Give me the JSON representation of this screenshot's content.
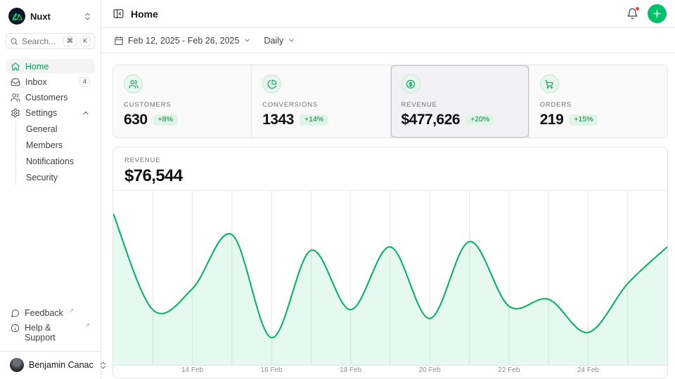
{
  "colors": {
    "accent": "#00c16a",
    "accent_text": "#00a155",
    "line": "#00b061",
    "area_fill": "rgba(0,193,106,0.10)",
    "gridline": "#e6e7ea",
    "notification_dot": "#ef4444"
  },
  "sidebar": {
    "workspace": {
      "name": "Nuxt"
    },
    "search": {
      "placeholder": "Search...",
      "kbd": [
        "⌘",
        "K"
      ]
    },
    "nav": [
      {
        "label": "Home",
        "icon": "home-icon",
        "active": true
      },
      {
        "label": "Inbox",
        "icon": "inbox-icon",
        "badge": "4"
      },
      {
        "label": "Customers",
        "icon": "users-icon"
      },
      {
        "label": "Settings",
        "icon": "gear-icon",
        "expanded": true,
        "children": [
          "General",
          "Members",
          "Notifications",
          "Security"
        ]
      }
    ],
    "footer": [
      {
        "label": "Feedback",
        "icon": "chat-bubble-icon",
        "external": "↗"
      },
      {
        "label": "Help & Support",
        "icon": "info-icon",
        "external": "↗"
      }
    ],
    "user": {
      "name": "Benjamin Canac"
    }
  },
  "header": {
    "title": "Home"
  },
  "toolbar": {
    "date_range": "Feb 12, 2025 - Feb 26, 2025",
    "granularity": "Daily"
  },
  "stats": [
    {
      "label": "CUSTOMERS",
      "value": "630",
      "delta": "+8%",
      "icon": "users-icon",
      "selected": false
    },
    {
      "label": "CONVERSIONS",
      "value": "1343",
      "delta": "+14%",
      "icon": "pie-chart-icon",
      "selected": false
    },
    {
      "label": "REVENUE",
      "value": "$477,626",
      "delta": "+20%",
      "icon": "dollar-circle-icon",
      "selected": true
    },
    {
      "label": "ORDERS",
      "value": "219",
      "delta": "+15%",
      "icon": "cart-icon",
      "selected": false
    }
  ],
  "chart_header": {
    "label": "REVENUE",
    "value": "$76,544"
  },
  "chart_data": {
    "type": "area",
    "title": "Revenue",
    "x": [
      "Feb 12",
      "Feb 13",
      "Feb 14",
      "Feb 15",
      "Feb 16",
      "Feb 17",
      "Feb 18",
      "Feb 19",
      "Feb 20",
      "Feb 21",
      "Feb 22",
      "Feb 23",
      "Feb 24",
      "Feb 25",
      "Feb 26"
    ],
    "values": [
      87,
      32,
      44,
      75,
      16,
      66,
      32,
      68,
      27,
      71,
      34,
      38,
      19,
      47,
      68
    ],
    "value_unit": "percent-of-plot-height (no y-axis labels shown)",
    "x_tick_labels": [
      "14 Feb",
      "16 Feb",
      "18 Feb",
      "20 Feb",
      "22 Feb",
      "24 Feb"
    ],
    "x_tick_positions": [
      2,
      4,
      6,
      8,
      10,
      12
    ],
    "grid": "vertical-daily",
    "legend": "none",
    "smoothing": "spline"
  }
}
